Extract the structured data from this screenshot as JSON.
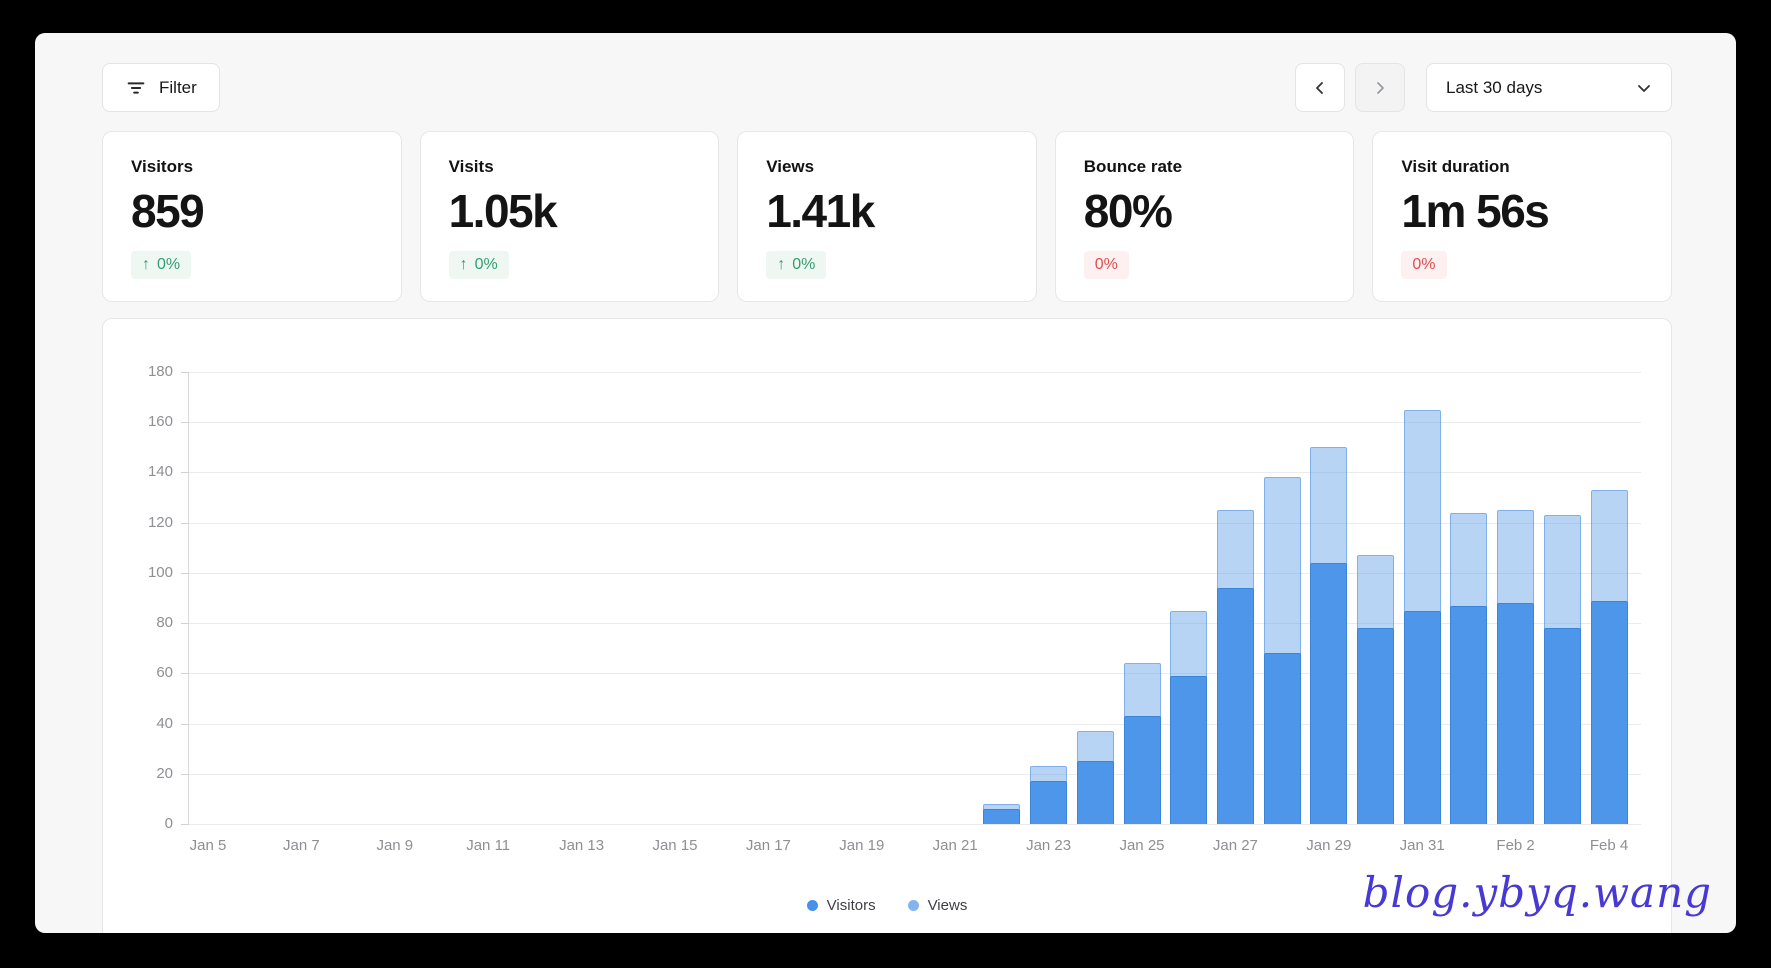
{
  "header": {
    "filter_label": "Filter",
    "date_range": "Last 30 days"
  },
  "stats": [
    {
      "label": "Visitors",
      "value": "859",
      "change": "0%",
      "direction": "up",
      "tone": "positive"
    },
    {
      "label": "Visits",
      "value": "1.05k",
      "change": "0%",
      "direction": "up",
      "tone": "positive"
    },
    {
      "label": "Views",
      "value": "1.41k",
      "change": "0%",
      "direction": "up",
      "tone": "positive"
    },
    {
      "label": "Bounce rate",
      "value": "80%",
      "change": "0%",
      "direction": "none",
      "tone": "negative"
    },
    {
      "label": "Visit duration",
      "value": "1m 56s",
      "change": "0%",
      "direction": "none",
      "tone": "negative"
    }
  ],
  "chart_data": {
    "type": "bar",
    "mode": "overlay",
    "title": "",
    "xlabel": "",
    "ylabel": "",
    "ylim": [
      0,
      180
    ],
    "y_ticks": [
      0,
      20,
      40,
      60,
      80,
      100,
      120,
      140,
      160,
      180
    ],
    "grid": "horizontal",
    "legend_position": "bottom",
    "categories": [
      "Jan 5",
      "Jan 6",
      "Jan 7",
      "Jan 8",
      "Jan 9",
      "Jan 10",
      "Jan 11",
      "Jan 12",
      "Jan 13",
      "Jan 14",
      "Jan 15",
      "Jan 16",
      "Jan 17",
      "Jan 18",
      "Jan 19",
      "Jan 20",
      "Jan 21",
      "Jan 22",
      "Jan 23",
      "Jan 24",
      "Jan 25",
      "Jan 26",
      "Jan 27",
      "Jan 28",
      "Jan 29",
      "Jan 30",
      "Jan 31",
      "Feb 1",
      "Feb 2",
      "Feb 3",
      "Feb 4"
    ],
    "x_tick_labels": [
      "Jan 5",
      "Jan 7",
      "Jan 9",
      "Jan 11",
      "Jan 13",
      "Jan 15",
      "Jan 17",
      "Jan 19",
      "Jan 21",
      "Jan 23",
      "Jan 25",
      "Jan 27",
      "Jan 29",
      "Jan 31",
      "Feb 2",
      "Feb 4"
    ],
    "series": [
      {
        "name": "Visitors",
        "color": "#4e96e9",
        "border_color": "#3a85da",
        "legend_dot": "#4791e8",
        "values": [
          0,
          0,
          0,
          0,
          0,
          0,
          0,
          0,
          0,
          0,
          0,
          0,
          0,
          0,
          0,
          0,
          0,
          6,
          17,
          25,
          43,
          59,
          94,
          68,
          104,
          78,
          85,
          87,
          88,
          78,
          89
        ]
      },
      {
        "name": "Views",
        "color": "rgba(77,148,230,0.40)",
        "border_color": "rgba(58,133,218,0.45)",
        "legend_dot": "#82b5ef",
        "values": [
          0,
          0,
          0,
          0,
          0,
          0,
          0,
          0,
          0,
          0,
          0,
          0,
          0,
          0,
          0,
          0,
          0,
          8,
          23,
          37,
          64,
          85,
          125,
          138,
          150,
          107,
          165,
          124,
          125,
          123,
          133
        ]
      }
    ]
  },
  "watermark": {
    "text": "blog.ybyq.wang"
  },
  "colors": {
    "frame": "#000000",
    "page_bg": "#f7f7f8",
    "card_bg": "#ffffff",
    "card_border": "#e7e7ea",
    "positive_text": "#349d71",
    "positive_bg": "#eff7f2",
    "negative_text": "#df4f4f",
    "negative_bg": "#fdf0f0",
    "axis_label": "#8f8f94",
    "gridline": "#ebebee",
    "watermark": "#4838d4"
  },
  "icons": {
    "up_arrow_glyph": "↑"
  }
}
